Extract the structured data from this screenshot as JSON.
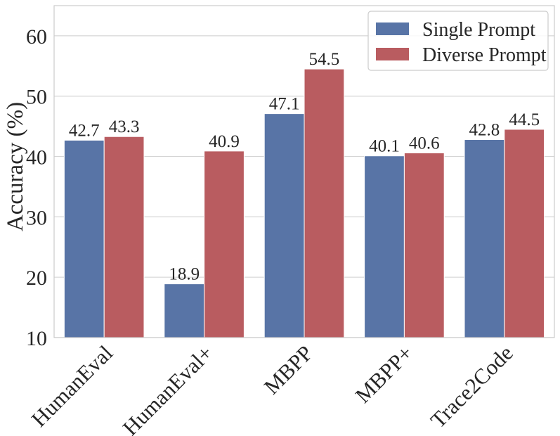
{
  "chart_data": {
    "type": "bar",
    "categories": [
      "HumanEval",
      "HumanEval+",
      "MBPP",
      "MBPP+",
      "Trace2Code"
    ],
    "series": [
      {
        "name": "Single Prompt",
        "values": [
          42.7,
          18.9,
          47.1,
          40.1,
          42.8
        ],
        "color": "#5874a6"
      },
      {
        "name": "Diverse Prompt",
        "values": [
          43.3,
          40.9,
          54.5,
          40.6,
          44.5
        ],
        "color": "#b95c60"
      }
    ],
    "data_labels": [
      [
        "42.7",
        "18.9",
        "47.1",
        "40.1",
        "42.8"
      ],
      [
        "43.3",
        "40.9",
        "54.5",
        "40.6",
        "44.5"
      ]
    ],
    "title": "",
    "xlabel": "",
    "ylabel": "Accuracy (%)",
    "ylim": [
      10,
      65
    ],
    "yticks": [
      10,
      20,
      30,
      40,
      50,
      60
    ],
    "ytick_labels": [
      "10",
      "20",
      "30",
      "40",
      "50",
      "60"
    ],
    "grid": "horizontal",
    "legend_position": "top-right",
    "colors": {
      "grid": "#d5d5d5",
      "frame": "#cccccc",
      "text": "#262626"
    }
  }
}
